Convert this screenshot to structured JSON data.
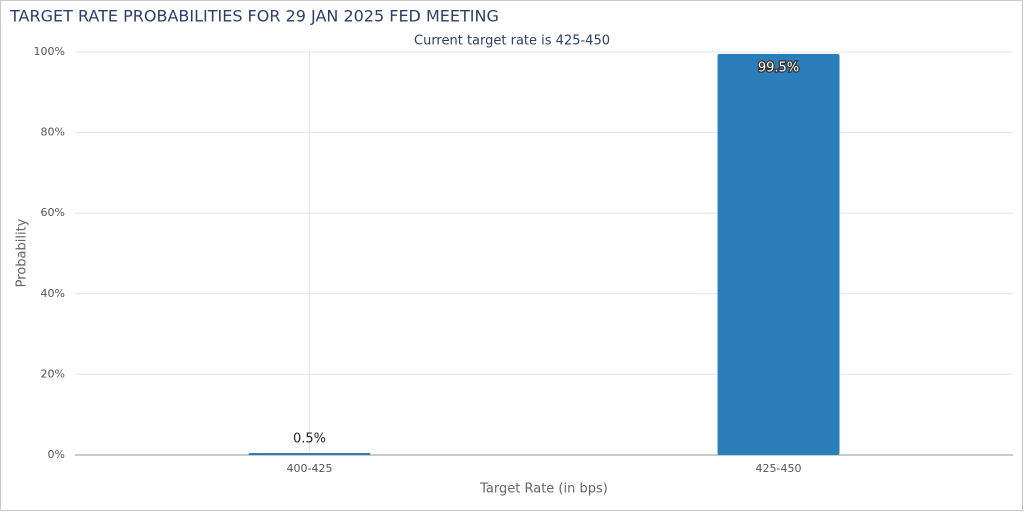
{
  "chart_data": {
    "type": "bar",
    "title": "TARGET RATE PROBABILITIES FOR 29 JAN 2025 FED MEETING",
    "subtitle": "Current target rate is 425-450",
    "x_label": "Target Rate (in bps)",
    "y_label": "Probability",
    "categories": [
      "400-425",
      "425-450"
    ],
    "values": [
      0.5,
      99.5
    ],
    "value_labels": [
      "0.5%",
      "99.5%"
    ],
    "color": "#2a7fba",
    "ylim": [
      0,
      100
    ],
    "yticks": [
      {
        "value": 0,
        "label": "0%"
      },
      {
        "value": 20,
        "label": "20%"
      },
      {
        "value": 40,
        "label": "40%"
      },
      {
        "value": 60,
        "label": "60%"
      },
      {
        "value": 80,
        "label": "80%"
      },
      {
        "value": 100,
        "label": "100%"
      }
    ],
    "grid": true
  }
}
